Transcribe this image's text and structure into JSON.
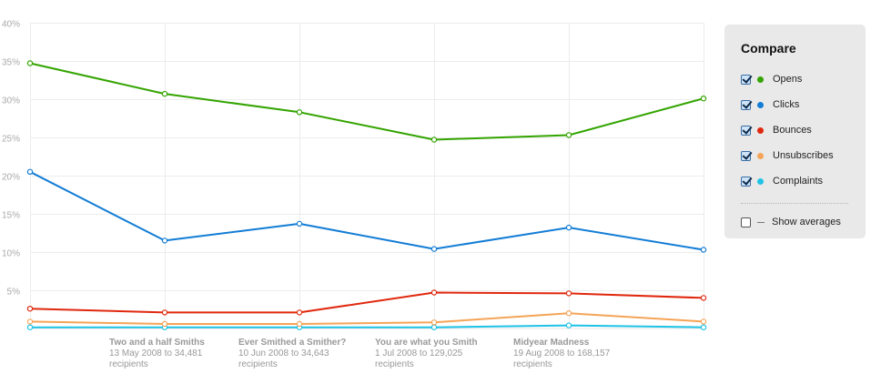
{
  "chart_data": {
    "type": "line",
    "ylim": [
      0,
      40
    ],
    "y_ticks": [
      "5%",
      "10%",
      "15%",
      "20%",
      "25%",
      "30%",
      "35%",
      "40%"
    ],
    "y_tick_values": [
      5,
      10,
      15,
      20,
      25,
      30,
      35,
      40
    ],
    "x_count": 6,
    "grid": true,
    "legend": "right",
    "series": [
      {
        "name": "Opens",
        "color": "#33a400",
        "values": [
          34.7,
          30.7,
          28.3,
          24.7,
          25.3,
          30.1
        ]
      },
      {
        "name": "Clicks",
        "color": "#137dd6",
        "values": [
          20.5,
          11.5,
          13.7,
          10.4,
          13.2,
          10.3
        ]
      },
      {
        "name": "Bounces",
        "color": "#e0280e",
        "values": [
          2.6,
          2.1,
          2.1,
          4.7,
          4.6,
          4.0
        ]
      },
      {
        "name": "Unsubscribes",
        "color": "#f5a457",
        "values": [
          0.9,
          0.6,
          0.6,
          0.8,
          2.0,
          0.9
        ]
      },
      {
        "name": "Complaints",
        "color": "#1ec3e6",
        "values": [
          0.15,
          0.15,
          0.15,
          0.15,
          0.4,
          0.15
        ]
      }
    ]
  },
  "campaigns": [
    {
      "name": "Two and a half Smiths",
      "line1": "13 May 2008 to 34,481",
      "line2": "recipients"
    },
    {
      "name": "Ever Smithed a Smither?",
      "line1": "10 Jun 2008 to 34,643",
      "line2": "recipients"
    },
    {
      "name": "You are what you Smith",
      "line1": "1 Jul 2008 to 129,025",
      "line2": "recipients"
    },
    {
      "name": "Midyear Madness",
      "line1": "19 Aug 2008 to 168,157",
      "line2": "recipients"
    }
  ],
  "compare": {
    "title": "Compare",
    "items": [
      {
        "label": "Opens",
        "color": "#33a400",
        "checked": true
      },
      {
        "label": "Clicks",
        "color": "#137dd6",
        "checked": true
      },
      {
        "label": "Bounces",
        "color": "#e0280e",
        "checked": true
      },
      {
        "label": "Unsubscribes",
        "color": "#f5a457",
        "checked": true
      },
      {
        "label": "Complaints",
        "color": "#1ec3e6",
        "checked": true
      }
    ],
    "show_averages": {
      "label": "Show averages",
      "checked": false
    }
  }
}
